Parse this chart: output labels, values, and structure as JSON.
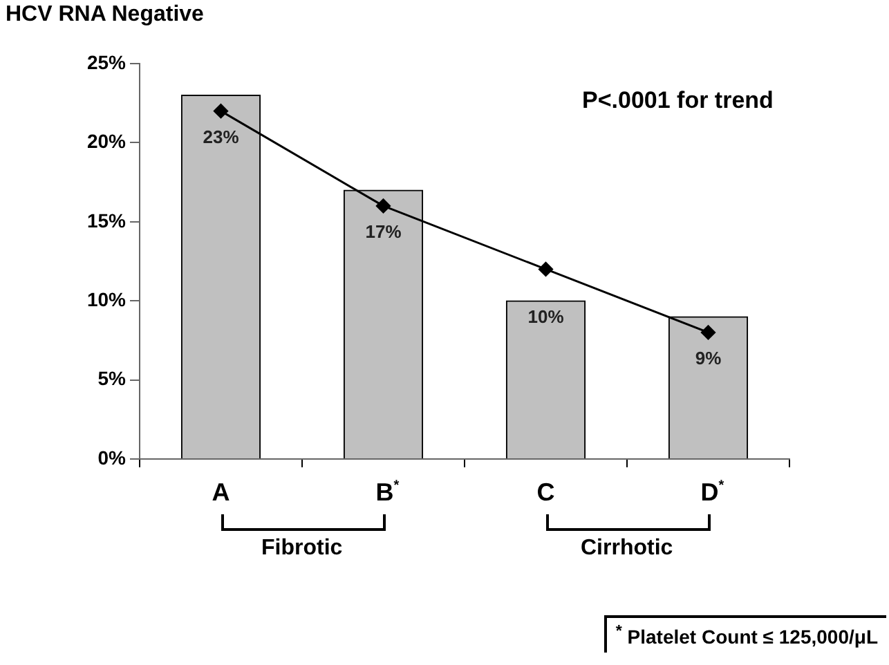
{
  "chart_data": {
    "type": "bar",
    "title": "HCV RNA Negative",
    "categories": [
      "A",
      "B$^{*}$",
      "C",
      "D$^{*}$"
    ],
    "series": [
      {
        "color": "#c0c0c0",
        "values": [
          23,
          17,
          10,
          9
        ],
        "value_labels": [
          "23%",
          "17%",
          "10%",
          "9%"
        ]
      },
      {
        "type": "line",
        "color": "#000000",
        "values": [
          22,
          16,
          12,
          8
        ],
        "marker": "diamond",
        "line_style": "solid"
      }
    ],
    "ylim": [
      0,
      25
    ],
    "yticks": [
      {
        "value": 0,
        "label": "0%"
      },
      {
        "value": 5,
        "label": "5%"
      },
      {
        "value": 10,
        "label": "10%"
      },
      {
        "value": 15,
        "label": "15%"
      },
      {
        "value": 20,
        "label": "20%"
      },
      {
        "value": 25,
        "label": "25%"
      }
    ],
    "grid": false,
    "legend": false,
    "annotations": [
      "P<.0001 for trend",
      "Fibrotic",
      "Cirrhotic",
      "$^{*}$ Platelet Count ≤ 125,000/μL"
    ]
  }
}
